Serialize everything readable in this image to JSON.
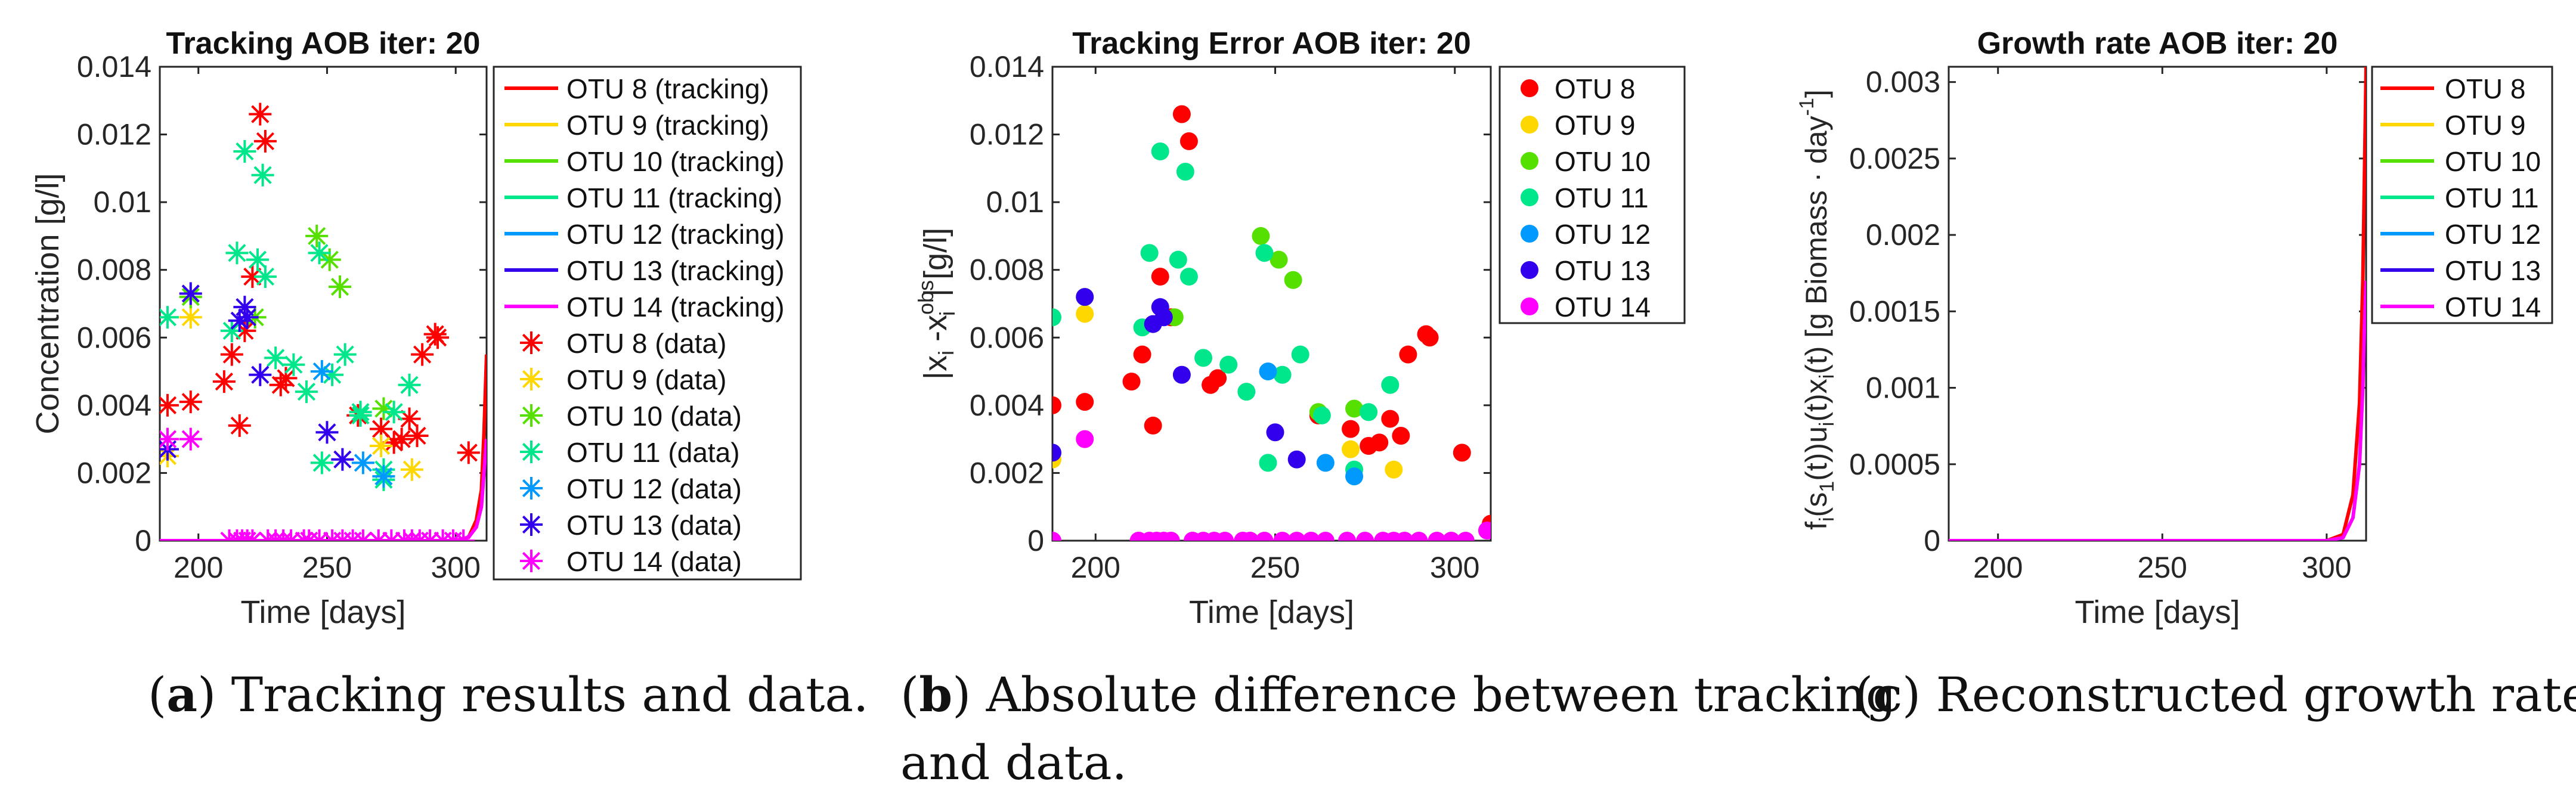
{
  "colors": {
    "OTU 8": "#ff0000",
    "OTU 9": "#ffd700",
    "OTU 10": "#55e000",
    "OTU 11": "#00e68a",
    "OTU 12": "#0099ff",
    "OTU 13": "#3300ee",
    "OTU 14": "#ff00ff"
  },
  "captions": {
    "a_letter": "a",
    "a_text": " Tracking results and data.",
    "b_letter": "b",
    "b_text_line1": " Absolute difference between tracking",
    "b_text_line2": "and data.",
    "c_letter": "c",
    "c_text": " Reconstructed growth rate."
  },
  "chart_data": [
    {
      "id": "a",
      "type": "line+scatter",
      "title": "Tracking AOB iter: 20",
      "xlabel": "Time [days]",
      "ylabel": "Concentration [g/l]",
      "xlim": [
        185,
        312
      ],
      "ylim": [
        0,
        0.014
      ],
      "xticks": [
        200,
        250,
        300
      ],
      "xticklabels": [
        "200",
        "250",
        "300"
      ],
      "yticks": [
        0,
        0.002,
        0.004,
        0.006,
        0.008,
        0.01,
        0.012,
        0.014
      ],
      "yticklabels": [
        "0",
        "0.002",
        "0.004",
        "0.006",
        "0.008",
        "0.01",
        "0.012",
        "0.014"
      ],
      "legend": [
        "OTU 8 (tracking)",
        "OTU 9 (tracking)",
        "OTU 10 (tracking)",
        "OTU 11 (tracking)",
        "OTU 12 (tracking)",
        "OTU 13 (tracking)",
        "OTU 14 (tracking)",
        "OTU 8 (data)",
        "OTU 9 (data)",
        "OTU 10 (data)",
        "OTU 11 (data)",
        "OTU 12 (data)",
        "OTU 13 (data)",
        "OTU 14 (data)"
      ],
      "legend_location": "right",
      "tracking": [
        {
          "name": "OTU 8",
          "x": [
            185,
            300,
            305,
            308,
            310,
            311,
            312
          ],
          "y": [
            0,
            0,
            0.0001,
            0.0006,
            0.0015,
            0.0032,
            0.0055
          ]
        },
        {
          "name": "OTU 14",
          "x": [
            185,
            300,
            305,
            308,
            310,
            311,
            312
          ],
          "y": [
            0,
            0,
            0.0001,
            0.0004,
            0.001,
            0.002,
            0.003
          ]
        }
      ],
      "data_series": [
        {
          "name": "OTU 8",
          "x": [
            188,
            197,
            210,
            213,
            216,
            218,
            221,
            224,
            226,
            232,
            234,
            262,
            271,
            276,
            279,
            282,
            285,
            287,
            292,
            293,
            305
          ],
          "y": [
            0.004,
            0.0041,
            0.0047,
            0.0055,
            0.0034,
            0.0062,
            0.0078,
            0.0126,
            0.0118,
            0.0046,
            0.0048,
            0.0037,
            0.0033,
            0.0029,
            0.003,
            0.0036,
            0.0031,
            0.0055,
            0.0061,
            0.006,
            0.0026
          ]
        },
        {
          "name": "OTU 9",
          "x": [
            188,
            197,
            271,
            283
          ],
          "y": [
            0.0025,
            0.0066,
            0.0028,
            0.0021
          ]
        },
        {
          "name": "OTU 10",
          "x": [
            197,
            222,
            246,
            251,
            255,
            272
          ],
          "y": [
            0.0072,
            0.0066,
            0.009,
            0.0083,
            0.0075,
            0.0039
          ]
        },
        {
          "name": "OTU 11",
          "x": [
            188,
            213,
            215,
            218,
            223,
            225,
            226,
            230,
            237,
            242,
            247,
            248,
            252,
            257,
            263,
            263,
            272,
            272,
            276,
            282
          ],
          "y": [
            0.0066,
            0.0062,
            0.0085,
            0.0115,
            0.0083,
            0.0108,
            0.0078,
            0.0054,
            0.0052,
            0.0044,
            0.0085,
            0.0023,
            0.0049,
            0.0055,
            0.0037,
            0.0038,
            0.0021,
            0.0018,
            0.0038,
            0.0046
          ]
        },
        {
          "name": "OTU 12",
          "x": [
            248,
            264,
            272
          ],
          "y": [
            0.005,
            0.0023,
            0.0019
          ]
        },
        {
          "name": "OTU 13",
          "x": [
            188,
            197,
            216,
            218,
            219,
            224,
            250,
            256
          ],
          "y": [
            0.0027,
            0.0073,
            0.0065,
            0.0069,
            0.0066,
            0.0049,
            0.0032,
            0.0024
          ]
        },
        {
          "name": "OTU 14",
          "x": [
            188,
            197,
            212,
            215,
            217,
            219,
            221,
            227,
            230,
            233,
            236,
            241,
            243,
            247,
            252,
            256,
            260,
            264,
            270,
            275,
            280,
            283,
            286,
            290,
            295,
            299,
            303
          ],
          "y": [
            0.003,
            0.003,
            0,
            0,
            0,
            0,
            0,
            0,
            0,
            0,
            0,
            0,
            0,
            0,
            0,
            0,
            0,
            0,
            0,
            0,
            0,
            0,
            0,
            0,
            0,
            0,
            0
          ]
        }
      ]
    },
    {
      "id": "b",
      "type": "scatter",
      "title": "Tracking Error AOB iter: 20",
      "xlabel": "Time [days]",
      "ylabel_parts": {
        "a": "|x",
        "b": "i",
        "c": " -x",
        "d": "obs",
        "e": "i",
        "f": "| [g/l]"
      },
      "xlim": [
        188,
        310
      ],
      "ylim": [
        0,
        0.014
      ],
      "xticks": [
        200,
        250,
        300
      ],
      "xticklabels": [
        "200",
        "250",
        "300"
      ],
      "yticks": [
        0,
        0.002,
        0.004,
        0.006,
        0.008,
        0.01,
        0.012,
        0.014
      ],
      "yticklabels": [
        "0",
        "0.002",
        "0.004",
        "0.006",
        "0.008",
        "0.01",
        "0.012",
        "0.014"
      ],
      "legend": [
        "OTU 8",
        "OTU 9",
        "OTU 10",
        "OTU 11",
        "OTU 12",
        "OTU 13",
        "OTU 14"
      ],
      "legend_location": "right",
      "series": [
        {
          "name": "OTU 8",
          "x": [
            188,
            197,
            210,
            213,
            216,
            218,
            221,
            224,
            226,
            232,
            234,
            262,
            271,
            276,
            279,
            282,
            285,
            287,
            292,
            293,
            302,
            310
          ],
          "y": [
            0.004,
            0.0041,
            0.0047,
            0.0055,
            0.0034,
            0.0078,
            0.0066,
            0.0126,
            0.0118,
            0.0046,
            0.0048,
            0.0037,
            0.0033,
            0.0028,
            0.0029,
            0.0036,
            0.0031,
            0.0055,
            0.0061,
            0.006,
            0.0026,
            0.0005
          ]
        },
        {
          "name": "OTU 9",
          "x": [
            188,
            197,
            271,
            283
          ],
          "y": [
            0.0024,
            0.0067,
            0.0027,
            0.0021
          ]
        },
        {
          "name": "OTU 10",
          "x": [
            197,
            222,
            246,
            251,
            255,
            262,
            272
          ],
          "y": [
            0.0072,
            0.0066,
            0.009,
            0.0083,
            0.0077,
            0.0038,
            0.0039
          ]
        },
        {
          "name": "OTU 11",
          "x": [
            188,
            213,
            215,
            218,
            223,
            225,
            226,
            230,
            237,
            242,
            247,
            248,
            252,
            257,
            263,
            272,
            276,
            282
          ],
          "y": [
            0.0066,
            0.0063,
            0.0085,
            0.0115,
            0.0083,
            0.0109,
            0.0078,
            0.0054,
            0.0052,
            0.0044,
            0.0085,
            0.0023,
            0.0049,
            0.0055,
            0.0037,
            0.0021,
            0.0038,
            0.0046
          ]
        },
        {
          "name": "OTU 12",
          "x": [
            248,
            264,
            272
          ],
          "y": [
            0.005,
            0.0023,
            0.0019
          ]
        },
        {
          "name": "OTU 13",
          "x": [
            188,
            197,
            216,
            218,
            219,
            224,
            250,
            256
          ],
          "y": [
            0.0026,
            0.0072,
            0.0064,
            0.0069,
            0.0066,
            0.0049,
            0.0032,
            0.0024
          ]
        },
        {
          "name": "OTU 14",
          "x": [
            188,
            197,
            212,
            215,
            217,
            219,
            221,
            227,
            230,
            233,
            236,
            241,
            243,
            247,
            252,
            256,
            260,
            264,
            270,
            275,
            280,
            283,
            286,
            290,
            295,
            299,
            303,
            309
          ],
          "y": [
            0,
            0.003,
            0,
            0,
            0,
            0,
            0,
            0,
            0,
            0,
            0,
            0,
            0,
            0,
            0,
            0,
            0,
            0,
            0,
            0,
            0,
            0,
            0,
            0,
            0,
            0,
            0,
            0.0003
          ]
        }
      ]
    },
    {
      "id": "c",
      "type": "line",
      "title": "Growth rate AOB iter: 20",
      "xlabel": "Time [days]",
      "ylabel_parts": {
        "a": "f",
        "b": "i",
        "c": "(s",
        "d": "1",
        "e": "(t))u",
        "f": "i",
        "g": "(t)x",
        "h": "i",
        "i": "(t)  [g Biomass · day",
        "j": "-1",
        "k": "]"
      },
      "xlim": [
        185,
        312
      ],
      "ylim": [
        0,
        0.0031
      ],
      "xticks": [
        200,
        250,
        300
      ],
      "xticklabels": [
        "200",
        "250",
        "300"
      ],
      "yticks": [
        0,
        0.0005,
        0.001,
        0.0015,
        0.002,
        0.0025,
        0.003
      ],
      "yticklabels": [
        "0",
        "0.0005",
        "0.001",
        "0.0015",
        "0.002",
        "0.0025",
        "0.003"
      ],
      "legend": [
        "OTU 8",
        "OTU 9",
        "OTU 10",
        "OTU 11",
        "OTU 12",
        "OTU 13",
        "OTU 14"
      ],
      "legend_location": "right",
      "series": [
        {
          "name": "OTU 8",
          "x": [
            185,
            300,
            305,
            308,
            310,
            311,
            311.5,
            312
          ],
          "y": [
            0,
            0,
            4e-05,
            0.0003,
            0.0009,
            0.0017,
            0.0024,
            0.0031
          ]
        },
        {
          "name": "OTU 14",
          "x": [
            185,
            300,
            305,
            308,
            310,
            311,
            311.5,
            312
          ],
          "y": [
            0,
            0,
            2e-05,
            0.00015,
            0.0005,
            0.001,
            0.0014,
            0.0017
          ]
        }
      ]
    }
  ]
}
